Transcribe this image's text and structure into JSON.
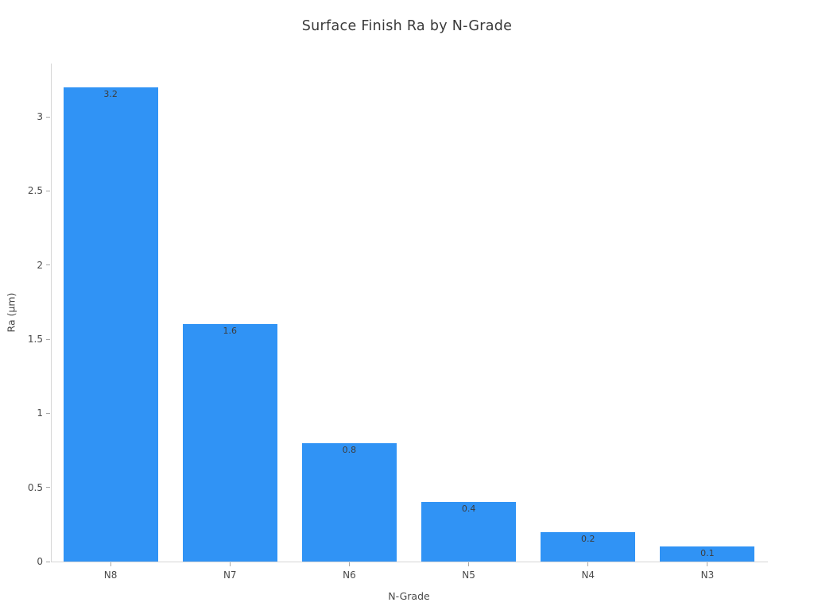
{
  "page": {
    "background_color": "#ffffff"
  },
  "chart_data": {
    "type": "bar",
    "title": "Surface Finish Ra by N-Grade",
    "xlabel": "N-Grade",
    "ylabel": "Ra (μm)",
    "categories": [
      "N8",
      "N7",
      "N6",
      "N5",
      "N4",
      "N3"
    ],
    "values": [
      3.2,
      1.6,
      0.8,
      0.4,
      0.2,
      0.1
    ],
    "bar_labels": [
      "3.2",
      "1.6",
      "0.8",
      "0.4",
      "0.2",
      "0.1"
    ],
    "yticks": [
      0,
      0.5,
      1,
      1.5,
      2,
      2.5,
      3
    ],
    "ytick_labels": [
      "0",
      "0.5",
      "1",
      "1.5",
      "2",
      "2.5",
      "3"
    ],
    "ylim": [
      0,
      3.36
    ],
    "grid": false,
    "legend": false,
    "bar_color": "#3093f5",
    "bar_label_color": "#3d3d3d",
    "axis_line_color": "#d6d6d6",
    "tick_mark_color": "#a8a8a8",
    "tick_label_color": "#4a4a4a",
    "title_color": "#3a3a3a"
  }
}
